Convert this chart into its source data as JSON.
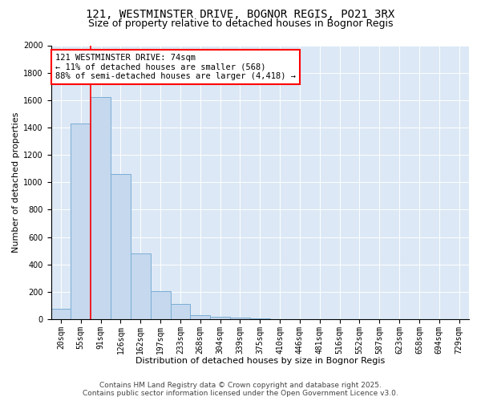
{
  "title_line1": "121, WESTMINSTER DRIVE, BOGNOR REGIS, PO21 3RX",
  "title_line2": "Size of property relative to detached houses in Bognor Regis",
  "xlabel": "Distribution of detached houses by size in Bognor Regis",
  "ylabel": "Number of detached properties",
  "bar_color": "#c5d8ee",
  "bar_edge_color": "#7aadd4",
  "background_color": "#dce8f5",
  "categories": [
    "20sqm",
    "55sqm",
    "91sqm",
    "126sqm",
    "162sqm",
    "197sqm",
    "233sqm",
    "268sqm",
    "304sqm",
    "339sqm",
    "375sqm",
    "410sqm",
    "446sqm",
    "481sqm",
    "516sqm",
    "552sqm",
    "587sqm",
    "623sqm",
    "658sqm",
    "694sqm",
    "729sqm"
  ],
  "values": [
    75,
    1430,
    1620,
    1060,
    480,
    205,
    110,
    30,
    20,
    10,
    5,
    2,
    2,
    1,
    1,
    0,
    0,
    0,
    0,
    0,
    0
  ],
  "ylim": [
    0,
    2000
  ],
  "yticks": [
    0,
    200,
    400,
    600,
    800,
    1000,
    1200,
    1400,
    1600,
    1800,
    2000
  ],
  "red_line_x": 1.5,
  "annotation_title": "121 WESTMINSTER DRIVE: 74sqm",
  "annotation_line1": "← 11% of detached houses are smaller (568)",
  "annotation_line2": "88% of semi-detached houses are larger (4,418) →",
  "footer_line1": "Contains HM Land Registry data © Crown copyright and database right 2025.",
  "footer_line2": "Contains public sector information licensed under the Open Government Licence v3.0.",
  "title_fontsize": 10,
  "subtitle_fontsize": 9,
  "axis_label_fontsize": 8,
  "tick_fontsize": 7,
  "annotation_fontsize": 7.5,
  "footer_fontsize": 6.5
}
